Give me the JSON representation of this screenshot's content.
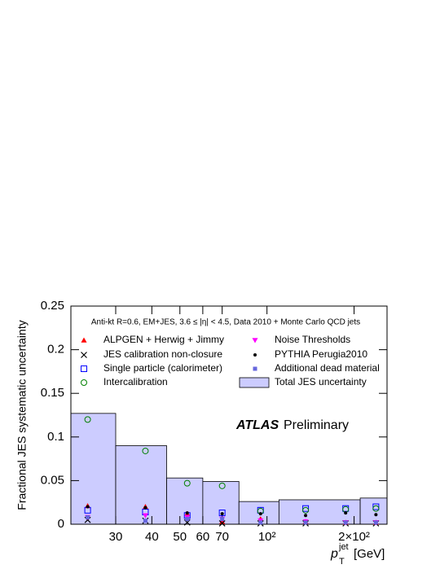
{
  "chart_data": {
    "type": "scatter",
    "annotation": "Anti-kt R=0.6, EM+JES, 3.6 ≤ |η| < 4.5, Data 2010 + Monte Carlo QCD jets",
    "brand": "ATLAS",
    "brand_note": "Preliminary",
    "y_label": "Fractional JES systematic uncertainty",
    "x_label": {
      "symbol": "p",
      "sub": "T",
      "sup": "jet",
      "unit": "[GeV]"
    },
    "log_x": true,
    "xlim": [
      21,
      260
    ],
    "xticks": [
      30,
      40,
      50,
      60,
      70,
      {
        "value": 100,
        "label": "10²"
      },
      {
        "value": 200,
        "label": "2×10²"
      }
    ],
    "ylim": [
      0,
      0.25
    ],
    "yticks": [
      0,
      0.05,
      0.1,
      0.15,
      0.2,
      0.25
    ],
    "x": [
      24,
      38,
      53,
      70,
      95,
      136,
      187,
      238
    ],
    "histogram": {
      "name": "Total JES uncertainty",
      "color": "#ccccff",
      "bins": [
        21,
        30,
        45,
        60,
        80,
        110,
        210,
        260
      ],
      "values": [
        0.127,
        0.09,
        0.053,
        0.049,
        0.026,
        0.028,
        0.03
      ]
    },
    "series": [
      {
        "name": "ALPGEN + Herwig + Jimmy",
        "color": "#ff0000",
        "marker": "triangle-up",
        "values": [
          0.021,
          0.02,
          0.012,
          0.003,
          0.006,
          0.003,
          0.002,
          0.002
        ]
      },
      {
        "name": "JES calibration non-closure",
        "color": "#000000",
        "marker": "cross",
        "values": [
          0.005,
          0.004,
          0.002,
          0.001,
          0.001,
          0.001,
          0.001,
          0.001
        ]
      },
      {
        "name": "Single particle (calorimeter)",
        "color": "#0000ff",
        "marker": "square-open",
        "values": [
          0.016,
          0.014,
          0.01,
          0.013,
          0.016,
          0.018,
          0.018,
          0.02
        ]
      },
      {
        "name": "Intercalibration",
        "color": "#008000",
        "marker": "circle-open",
        "values": [
          0.12,
          0.084,
          0.047,
          0.044,
          0.015,
          0.016,
          0.017,
          0.018
        ]
      },
      {
        "name": "Noise Thresholds",
        "color": "#ff00ff",
        "marker": "triangle-down",
        "values": [
          0.008,
          0.01,
          0.008,
          0.006,
          0.004,
          0.003,
          0.002,
          0.002
        ]
      },
      {
        "name": "PYTHIA Perugia2010",
        "color": "#000000",
        "marker": "dot",
        "values": [
          0.02,
          0.019,
          0.013,
          0.012,
          0.012,
          0.01,
          0.013,
          0.011
        ]
      },
      {
        "name": "Additional dead material",
        "color": "#6666dd",
        "marker": "square",
        "values": [
          0.008,
          0.004,
          0.006,
          0.006,
          0.002,
          0.002,
          0.002,
          0.002
        ]
      }
    ]
  }
}
